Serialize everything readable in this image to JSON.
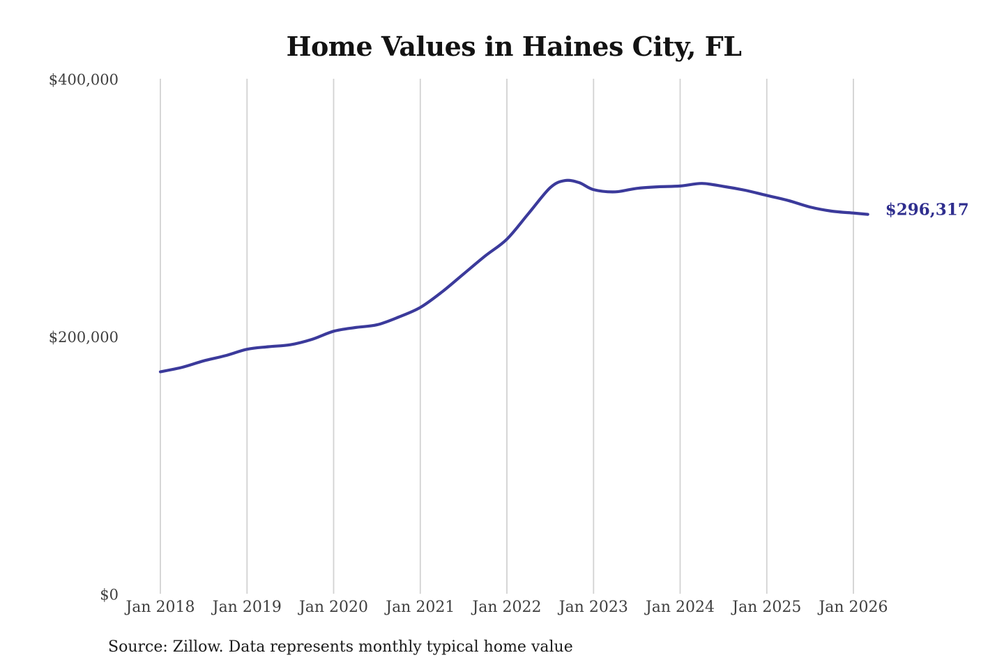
{
  "chart_data": {
    "type": "line",
    "title": "Home Values in Haines City, FL",
    "source_note": "Source: Zillow. Data represents monthly typical home value",
    "series_name": "Monthly typical home value",
    "currency": "USD",
    "end_label": "$296,317",
    "end_value": 296317,
    "ylim": [
      0,
      400000
    ],
    "x_range": [
      "Jan 2018",
      "Mar 2026"
    ],
    "grid": "vertical-only",
    "legend": "none",
    "colors": {
      "line": "#3b3a9b",
      "end_label": "#2f2e8e",
      "gridline": "#d2d2d2",
      "axis_text": "#3f3f3f",
      "title_text": "#131313"
    },
    "y_ticks": [
      {
        "label": "$0",
        "value": 0
      },
      {
        "label": "$200,000",
        "value": 200000
      },
      {
        "label": "$400,000",
        "value": 400000
      }
    ],
    "x_ticks": [
      {
        "label": "Jan 2018",
        "date": "2018-01"
      },
      {
        "label": "Jan 2019",
        "date": "2019-01"
      },
      {
        "label": "Jan 2020",
        "date": "2020-01"
      },
      {
        "label": "Jan 2021",
        "date": "2021-01"
      },
      {
        "label": "Jan 2022",
        "date": "2022-01"
      },
      {
        "label": "Jan 2023",
        "date": "2023-01"
      },
      {
        "label": "Jan 2024",
        "date": "2024-01"
      },
      {
        "label": "Jan 2025",
        "date": "2025-01"
      },
      {
        "label": "Jan 2026",
        "date": "2026-01"
      }
    ],
    "points": [
      {
        "date": "2018-01",
        "value": 174000
      },
      {
        "date": "2018-04",
        "value": 177500
      },
      {
        "date": "2018-07",
        "value": 182500
      },
      {
        "date": "2018-10",
        "value": 186500
      },
      {
        "date": "2019-01",
        "value": 191500
      },
      {
        "date": "2019-04",
        "value": 193500
      },
      {
        "date": "2019-07",
        "value": 195000
      },
      {
        "date": "2019-10",
        "value": 199200
      },
      {
        "date": "2020-01",
        "value": 205500
      },
      {
        "date": "2020-04",
        "value": 208400
      },
      {
        "date": "2020-07",
        "value": 210500
      },
      {
        "date": "2020-10",
        "value": 216500
      },
      {
        "date": "2021-01",
        "value": 224000
      },
      {
        "date": "2021-04",
        "value": 236000
      },
      {
        "date": "2021-07",
        "value": 250000
      },
      {
        "date": "2021-10",
        "value": 264000
      },
      {
        "date": "2022-01",
        "value": 277000
      },
      {
        "date": "2022-04",
        "value": 297000
      },
      {
        "date": "2022-07",
        "value": 317000
      },
      {
        "date": "2022-09",
        "value": 322500
      },
      {
        "date": "2022-11",
        "value": 321000
      },
      {
        "date": "2023-01",
        "value": 315500
      },
      {
        "date": "2023-04",
        "value": 313800
      },
      {
        "date": "2023-07",
        "value": 316500
      },
      {
        "date": "2023-10",
        "value": 317700
      },
      {
        "date": "2024-01",
        "value": 318300
      },
      {
        "date": "2024-04",
        "value": 320300
      },
      {
        "date": "2024-07",
        "value": 318000
      },
      {
        "date": "2024-10",
        "value": 315000
      },
      {
        "date": "2025-01",
        "value": 311000
      },
      {
        "date": "2025-04",
        "value": 307000
      },
      {
        "date": "2025-07",
        "value": 302000
      },
      {
        "date": "2025-10",
        "value": 298800
      },
      {
        "date": "2026-01",
        "value": 297300
      },
      {
        "date": "2026-03",
        "value": 296317
      }
    ]
  }
}
